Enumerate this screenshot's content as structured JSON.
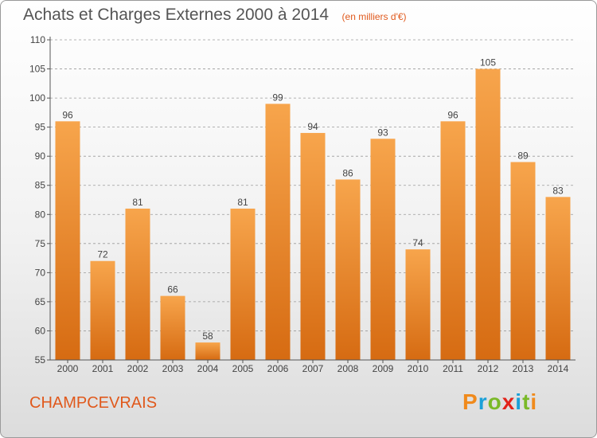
{
  "title": "Achats et Charges Externes 2000 à 2014",
  "unit": "(en milliers d'€)",
  "commune": "CHAMPCEVRAIS",
  "brand": {
    "letters": [
      "P",
      "r",
      "o",
      "x",
      "i",
      "t",
      "i"
    ],
    "colors": [
      "#f08a1c",
      "#1aa0d8",
      "#7ab928",
      "#e2231a",
      "#1aa0d8",
      "#7ab928",
      "#f08a1c"
    ]
  },
  "colors": {
    "bar_light": "#f7a54c",
    "bar_dark": "#d66b12",
    "axis": "#555555",
    "grid": "#9a9a9a"
  },
  "chart_data": {
    "type": "bar",
    "categories": [
      "2000",
      "2001",
      "2002",
      "2003",
      "2004",
      "2005",
      "2006",
      "2007",
      "2008",
      "2009",
      "2010",
      "2011",
      "2012",
      "2013",
      "2014"
    ],
    "values": [
      96,
      72,
      81,
      66,
      58,
      81,
      99,
      94,
      86,
      93,
      74,
      96,
      105,
      89,
      83
    ],
    "ylim": [
      55,
      110
    ],
    "yticks": [
      55,
      60,
      65,
      70,
      75,
      80,
      85,
      90,
      95,
      100,
      105,
      110
    ],
    "grid": true,
    "gridlines_dashed": true,
    "data_labels": true
  }
}
